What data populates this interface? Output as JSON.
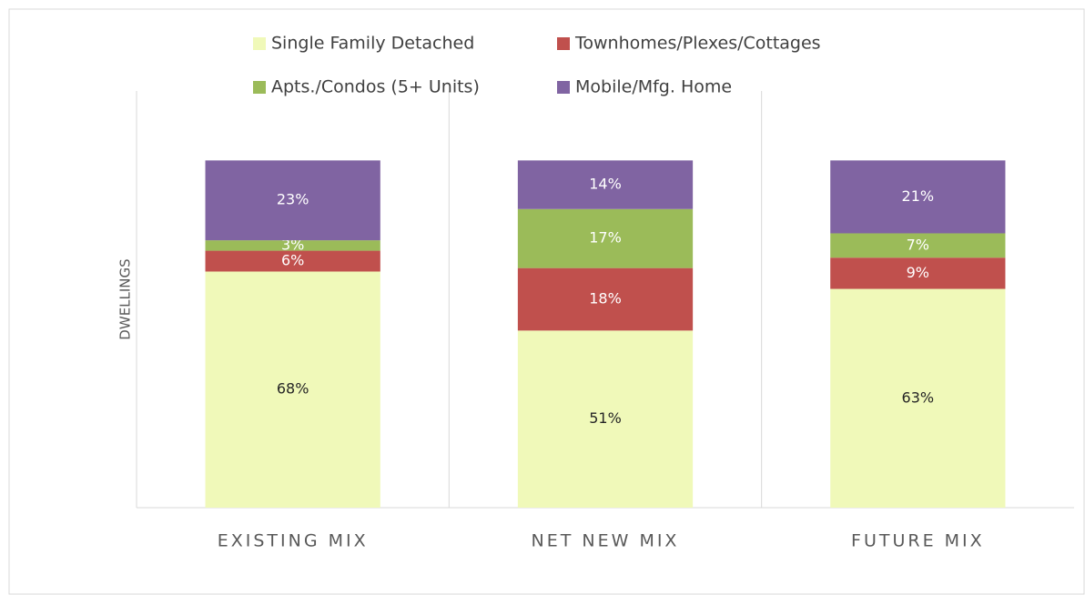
{
  "chart_data": {
    "type": "stacked_bar",
    "y_label": "DWELLINGS",
    "categories": [
      "EXISTING MIX",
      "NET NEW MIX",
      "FUTURE MIX"
    ],
    "series": [
      {
        "name": "Single Family Detached",
        "color": "#f0f9b9",
        "values": [
          68,
          51,
          63
        ],
        "value_labels": [
          "68%",
          "51%",
          "63%"
        ]
      },
      {
        "name": "Townhomes/Plexes/Cottages",
        "color": "#c0504d",
        "values": [
          6,
          18,
          9
        ],
        "value_labels": [
          "6%",
          "18%",
          "9%"
        ]
      },
      {
        "name": "Apts./Condos (5+ Units)",
        "color": "#9bbb59",
        "values": [
          3,
          17,
          7
        ],
        "value_labels": [
          "3%",
          "17%",
          "7%"
        ]
      },
      {
        "name": "Mobile/Mfg. Home",
        "color": "#8064a2",
        "values": [
          23,
          14,
          21
        ],
        "value_labels": [
          "23%",
          "14%",
          "21%"
        ]
      }
    ],
    "ylim": [
      0,
      120
    ],
    "grid": true,
    "legend": "top"
  }
}
